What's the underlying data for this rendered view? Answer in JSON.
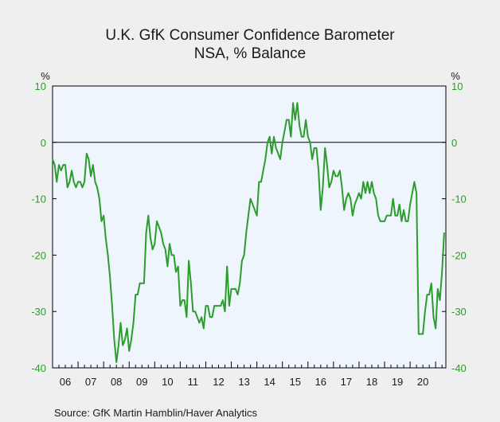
{
  "chart_data": {
    "type": "line",
    "title": "U.K. GfK Consumer Confidence Barometer",
    "subtitle": "NSA, % Balance",
    "unit_left": "%",
    "unit_right": "%",
    "ylim": [
      -40,
      10
    ],
    "yticks": [
      10,
      0,
      -10,
      -20,
      -30,
      -40
    ],
    "ytick_labels": [
      "10",
      "0",
      "-10",
      "-20",
      "-30",
      "-40"
    ],
    "x_range": [
      2006.0,
      2021.4
    ],
    "x_tick_labels": [
      "06",
      "07",
      "08",
      "09",
      "10",
      "11",
      "12",
      "13",
      "14",
      "15",
      "16",
      "17",
      "18",
      "19",
      "20"
    ],
    "zero_line": true,
    "grid": false,
    "line_color": "#2a9d2a",
    "plot_background": "#eef5fd",
    "series": [
      {
        "frequency": "monthly",
        "start": "2006-01",
        "values": [
          -3,
          -4,
          -7,
          -4,
          -5,
          -4,
          -4,
          -8,
          -7,
          -5,
          -7,
          -8,
          -7,
          -7,
          -8,
          -7,
          -2,
          -3,
          -6,
          -4,
          -7,
          -8,
          -10,
          -14,
          -13,
          -17,
          -20,
          -24,
          -29,
          -35,
          -39,
          -36,
          -32,
          -36,
          -35,
          -33,
          -37,
          -35,
          -32,
          -27,
          -27,
          -25,
          -25,
          -25,
          -16,
          -13,
          -17,
          -19,
          -18,
          -14,
          -15,
          -16,
          -18,
          -19,
          -22,
          -18,
          -20,
          -20,
          -23,
          -22,
          -29,
          -28,
          -28,
          -31,
          -21,
          -25,
          -30,
          -30,
          -31,
          -32,
          -31,
          -33,
          -29,
          -29,
          -31,
          -31,
          -29,
          -29,
          -29,
          -29,
          -28,
          -30,
          -22,
          -29,
          -26,
          -26,
          -26,
          -27,
          -25,
          -21,
          -20,
          -16,
          -13,
          -10,
          -11,
          -12,
          -13,
          -7,
          -7,
          -5,
          -3,
          0,
          1,
          -2,
          1,
          -1,
          -2,
          -3,
          0,
          2,
          4,
          4,
          1,
          7,
          4,
          7,
          3,
          1,
          1,
          4,
          1,
          0,
          -3,
          -1,
          -1,
          -5,
          -12,
          -8,
          -1,
          -4,
          -8,
          -7,
          -5,
          -6,
          -6,
          -5,
          -8,
          -12,
          -10,
          -9,
          -10,
          -13,
          -11,
          -10,
          -9,
          -10,
          -7,
          -9,
          -7,
          -9,
          -7,
          -9,
          -10,
          -13,
          -14,
          -14,
          -14,
          -13,
          -13,
          -13,
          -10,
          -13,
          -13,
          -11,
          -14,
          -12,
          -14,
          -14,
          -11,
          -9,
          -7,
          -9,
          -34,
          -34,
          -34,
          -30,
          -27,
          -27,
          -25,
          -31,
          -33,
          -26,
          -28,
          -23,
          -16
        ]
      }
    ],
    "source": "Source:  GfK Martin Hamblin/Haver Analytics"
  }
}
